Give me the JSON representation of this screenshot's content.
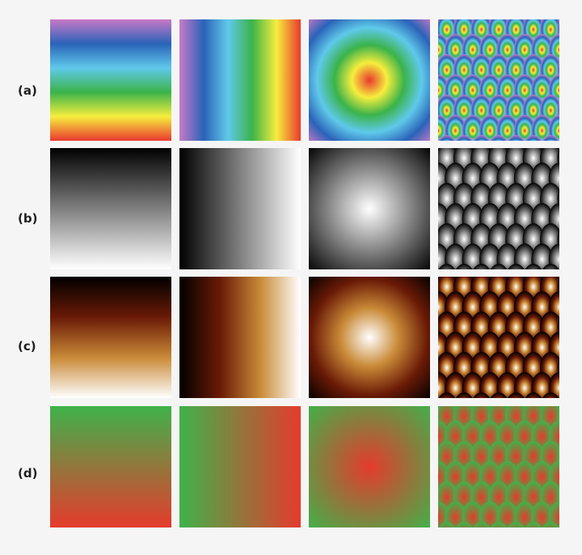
{
  "rows": [
    {
      "label": "(a)",
      "colormap": "rainbow"
    },
    {
      "label": "(b)",
      "colormap": "grayscale"
    },
    {
      "label": "(c)",
      "colormap": "heat"
    },
    {
      "label": "(d)",
      "colormap": "green-red"
    }
  ],
  "patterns": [
    "vertical-ramp",
    "horizontal-ramp",
    "radial",
    "periodic-sinusoid"
  ],
  "colormaps": {
    "rainbow": [
      "#c879c7",
      "#2a63b8",
      "#5fc9ea",
      "#3bb34a",
      "#f6ee3d",
      "#e9392f"
    ],
    "grayscale": [
      "#000000",
      "#ffffff"
    ],
    "heat": [
      "#000000",
      "#6a1a06",
      "#c98a37",
      "#ffffff"
    ],
    "green-red": [
      "#3fb24a",
      "#e53b2d"
    ]
  }
}
